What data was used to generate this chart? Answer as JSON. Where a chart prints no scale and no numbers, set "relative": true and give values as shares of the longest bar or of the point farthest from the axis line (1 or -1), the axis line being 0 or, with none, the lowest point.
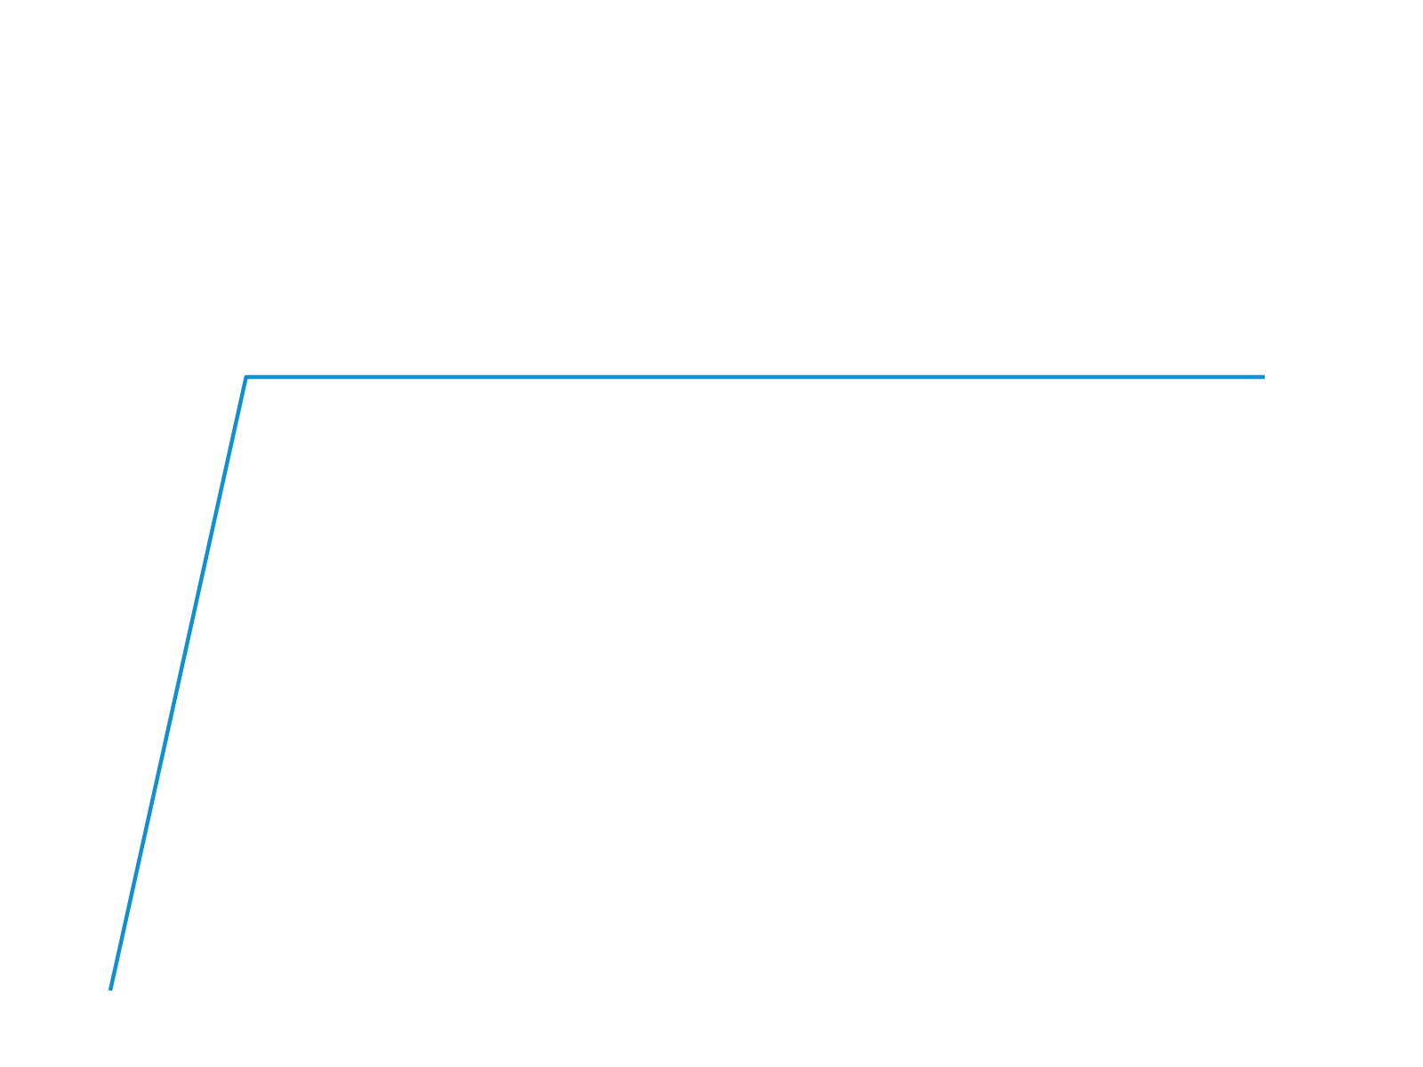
{
  "chart_data": {
    "type": "line",
    "relative": true,
    "categories": [
      null,
      null,
      null,
      null,
      null,
      null,
      null,
      null,
      null,
      null,
      null,
      null,
      null,
      null,
      null,
      null,
      null,
      null
    ],
    "series": [
      {
        "color": "#0e90d2",
        "values": [
          0,
          0.5,
          1,
          1,
          1,
          1,
          1,
          1,
          1,
          1,
          1,
          1,
          1,
          1,
          1,
          1,
          1,
          1
        ]
      }
    ]
  }
}
